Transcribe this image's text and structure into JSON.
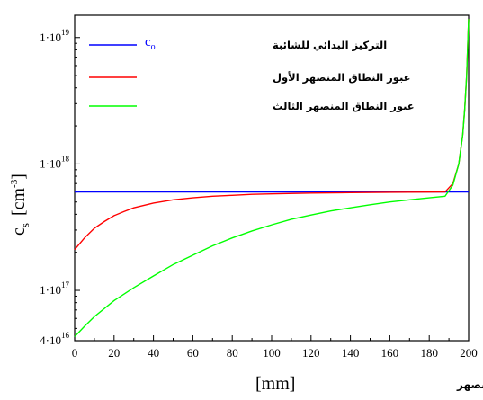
{
  "chart_data": {
    "type": "line",
    "y_scale": "log",
    "ylim": [
      40000000000000000,
      15000000000000000000
    ],
    "xlim": [
      0,
      200
    ],
    "x_ticks": [
      "0",
      "20",
      "40",
      "60",
      "80",
      "100",
      "120",
      "140",
      "160",
      "180",
      "200"
    ],
    "x_tick_values": [
      0,
      20,
      40,
      60,
      80,
      100,
      120,
      140,
      160,
      180,
      200
    ],
    "y_ticks": [
      {
        "value": 10000000000000000000,
        "mant": "1·10",
        "exp": "19"
      },
      {
        "value": 1000000000000000000,
        "mant": "1·10",
        "exp": "18"
      },
      {
        "value": 100000000000000000,
        "mant": "1·10",
        "exp": "17"
      },
      {
        "value": 40000000000000000,
        "mant": "4·10",
        "exp": "16"
      }
    ],
    "ylabel": {
      "main": "c",
      "sub": "s",
      "unit": "[cm",
      "unit_exp": "-3",
      "close": "]"
    },
    "xlabel": {
      "unit": "[mm]",
      "text": "مسافة انزياح النطاق المنصهر"
    },
    "legend_position": "top-left",
    "grid": false,
    "series": [
      {
        "name": "التركيز البدائي للشائبة",
        "name_symbol": "c",
        "name_symbol_sub": "o",
        "color": "#0000ff",
        "x": [
          0,
          200
        ],
        "y": [
          600000000000000000,
          600000000000000000
        ]
      },
      {
        "name": "عبور النطاق المنصهر الأول",
        "color": "#ff0000",
        "x": [
          0,
          5,
          10,
          15,
          20,
          25,
          30,
          35,
          40,
          50,
          60,
          70,
          80,
          90,
          100,
          120,
          140,
          160,
          180,
          188,
          192,
          195,
          197,
          198,
          199,
          200
        ],
        "y": [
          210000000000000000,
          260000000000000000,
          310000000000000000,
          350000000000000000,
          390000000000000000,
          420000000000000000,
          450000000000000000,
          470000000000000000,
          490000000000000000,
          520000000000000000,
          540000000000000000,
          555000000000000000,
          565000000000000000,
          575000000000000000,
          580000000000000000,
          588000000000000000,
          593000000000000000,
          597000000000000000,
          599000000000000000,
          600000000000000000,
          700000000000000000,
          1000000000000000000,
          1700000000000000000,
          2700000000000000000,
          5000000000000000000,
          14000000000000000000
        ]
      },
      {
        "name": "عبور النطاق المنصهر الثالث",
        "color": "#00ff00",
        "x": [
          0,
          5,
          10,
          20,
          30,
          40,
          50,
          60,
          70,
          80,
          90,
          100,
          110,
          120,
          130,
          140,
          150,
          160,
          170,
          180,
          188,
          192,
          195,
          197,
          198,
          199,
          200
        ],
        "y": [
          43000000000000000,
          52000000000000000,
          62000000000000000,
          83000000000000000,
          105000000000000000,
          130000000000000000,
          160000000000000000,
          190000000000000000,
          225000000000000000,
          260000000000000000,
          295000000000000000,
          330000000000000000,
          365000000000000000,
          395000000000000000,
          425000000000000000,
          450000000000000000,
          475000000000000000,
          500000000000000000,
          520000000000000000,
          540000000000000000,
          555000000000000000,
          680000000000000000,
          1000000000000000000,
          1700000000000000000,
          2700000000000000000,
          5000000000000000000,
          14000000000000000000
        ]
      }
    ]
  }
}
